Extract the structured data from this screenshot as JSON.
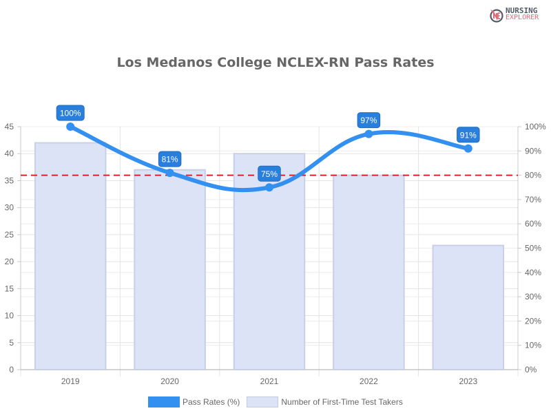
{
  "branding": {
    "logo_line1": "NURSING",
    "logo_line2": "EXPLORER"
  },
  "chart_data": {
    "type": "bar+line",
    "title": "Los Medanos College NCLEX-RN Pass Rates",
    "categories": [
      "2019",
      "2020",
      "2021",
      "2022",
      "2023"
    ],
    "series": [
      {
        "name": "Pass Rates (%)",
        "type": "line",
        "axis": "right",
        "color": "#3390f0",
        "values": [
          100,
          81,
          75,
          97,
          91
        ],
        "labels": [
          "100%",
          "81%",
          "75%",
          "97%",
          "91%"
        ]
      },
      {
        "name": "Number of First-Time Test Takers",
        "type": "bar",
        "axis": "left",
        "color": "#dde3f7",
        "values": [
          42,
          37,
          40,
          36,
          23
        ]
      }
    ],
    "reference_line": {
      "value": 80,
      "axis": "right",
      "color": "#e02020",
      "style": "dashed"
    },
    "left_axis": {
      "ticks": [
        "0",
        "5",
        "10",
        "15",
        "20",
        "25",
        "30",
        "35",
        "40",
        "45"
      ],
      "ylim": [
        0,
        45
      ]
    },
    "right_axis": {
      "ticks": [
        "0%",
        "10%",
        "20%",
        "30%",
        "40%",
        "50%",
        "60%",
        "70%",
        "80%",
        "90%",
        "100%"
      ],
      "ylim": [
        0,
        100
      ]
    },
    "grid": true,
    "legend_position": "bottom"
  },
  "legend": [
    {
      "label": "Pass Rates (%)",
      "color": "#3390f0"
    },
    {
      "label": "Number of First-Time Test Takers",
      "color": "#dde3f7"
    }
  ]
}
